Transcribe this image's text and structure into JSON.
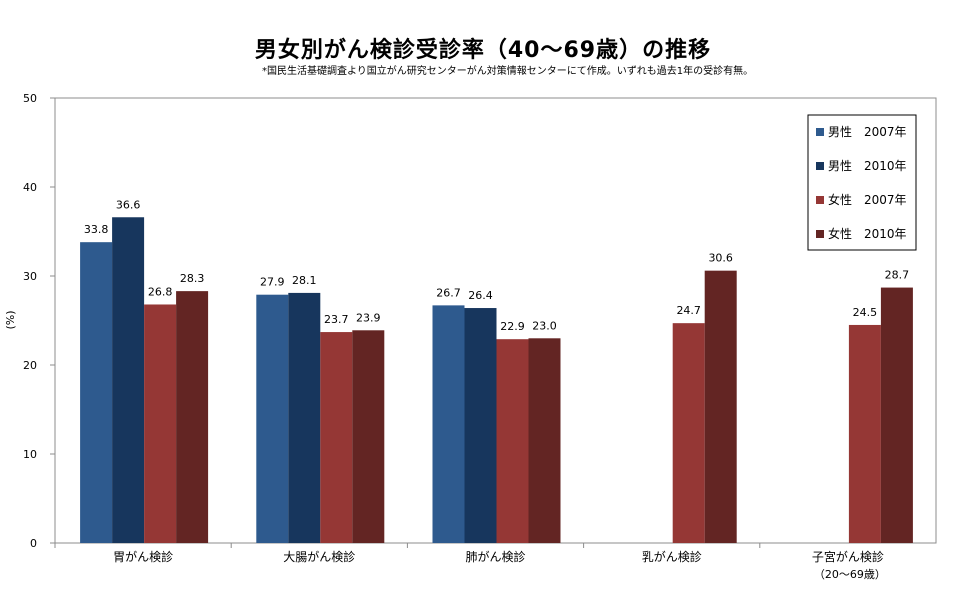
{
  "chart_data": {
    "type": "bar",
    "title": "男女別がん検診受診率（40～69歳）の推移",
    "subtitle": "*国民生活基礎調査より国立がん研究センターがん対策情報センターにて作成。いずれも過去1年の受診有無。",
    "ylabel": "(%)",
    "xlabel": "",
    "ylim": [
      0,
      50
    ],
    "yticks": [
      0,
      10,
      20,
      30,
      40,
      50
    ],
    "categories": [
      "胃がん検診",
      "大腸がん検診",
      "肺がん検診",
      "乳がん検診",
      "子宮がん検診"
    ],
    "category_sublabels": [
      "",
      "",
      "",
      "",
      "（20～69歳）"
    ],
    "legend_position": "top-right",
    "series": [
      {
        "name": "男性　2007年",
        "color": "#2e5a8e",
        "values": [
          33.8,
          27.9,
          26.7,
          null,
          null
        ]
      },
      {
        "name": "男性　2010年",
        "color": "#17365d",
        "values": [
          36.6,
          28.1,
          26.4,
          null,
          null
        ]
      },
      {
        "name": "女性　2007年",
        "color": "#953735",
        "values": [
          26.8,
          23.7,
          22.9,
          24.7,
          24.5
        ]
      },
      {
        "name": "女性　2010年",
        "color": "#632523",
        "values": [
          28.3,
          23.9,
          23.0,
          30.6,
          28.7
        ]
      }
    ]
  }
}
